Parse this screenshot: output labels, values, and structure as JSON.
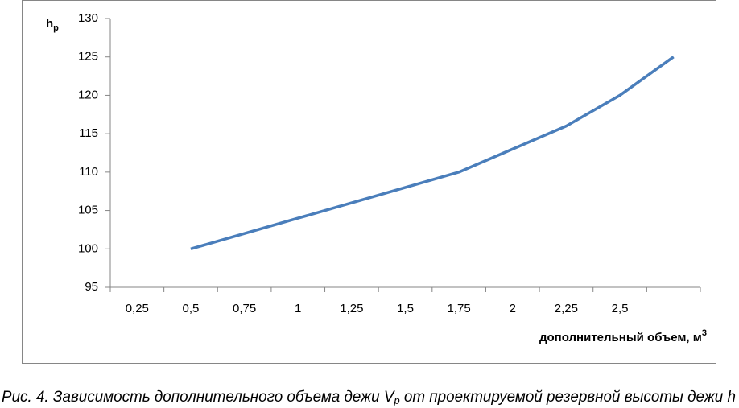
{
  "chart_data": {
    "type": "line",
    "categories": [
      "0,25",
      "0,5",
      "0,75",
      "1",
      "1,25",
      "1,5",
      "1,75",
      "2",
      "2,25",
      "2,5",
      null
    ],
    "series": [
      {
        "color": "#4a7ebb",
        "values": [
          null,
          100,
          102,
          104,
          106,
          108,
          110,
          113,
          116,
          120,
          125
        ]
      }
    ],
    "ylim": [
      95,
      130
    ],
    "yticks": [
      95,
      100,
      105,
      110,
      115,
      120,
      125,
      130
    ],
    "grid": false,
    "y_label": "h",
    "y_label_sub": "p",
    "x_label": "дополнительный объем, м",
    "x_label_sup": "3",
    "caption": [
      "Рис. 4. Зависимость дополнительного объема дежи V",
      "p",
      "  от проектируемой резервной высоты дежи h"
    ]
  }
}
